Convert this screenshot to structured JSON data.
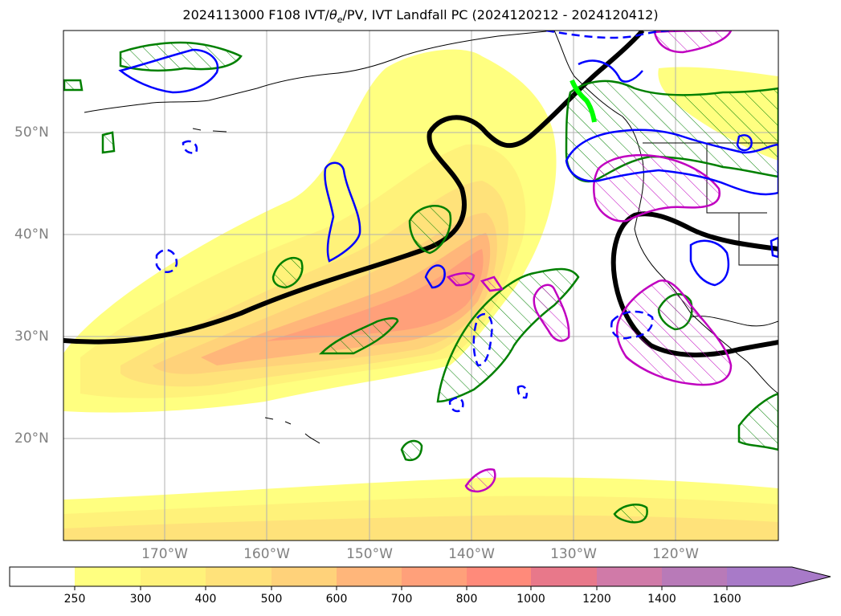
{
  "title": {
    "prefix": "2024113000 F108 IVT/",
    "theta_symbol": "θ",
    "theta_sub": "e",
    "suffix": "/PV, IVT Landfall PC (2024120212 - 2024120412)"
  },
  "map": {
    "lat_labels": [
      "50°N",
      "40°N",
      "30°N",
      "20°N"
    ],
    "lon_labels": [
      "170°W",
      "160°W",
      "150°W",
      "140°W",
      "130°W",
      "120°W"
    ],
    "gridlines": true
  },
  "colorbar": {
    "ticks": [
      "250",
      "300",
      "400",
      "500",
      "600",
      "700",
      "800",
      "1000",
      "1200",
      "1400",
      "1600"
    ],
    "colors": [
      "#ffffff",
      "#ffff80",
      "#fff27a",
      "#ffe27a",
      "#ffd27a",
      "#ffb67a",
      "#ffa07a",
      "#ff8a7a",
      "#e8788a",
      "#d07aa8",
      "#b87ab8",
      "#a87ac8"
    ],
    "extend": "max"
  },
  "colors": {
    "ivt_low": "#ffff80",
    "ivt_high": "#ff8a7a",
    "pv_contour": "#000000",
    "theta_positive": "#008000",
    "theta_negative": "#0000ff",
    "magenta": "#c000c0",
    "landfall_point": "#00ff00"
  }
}
